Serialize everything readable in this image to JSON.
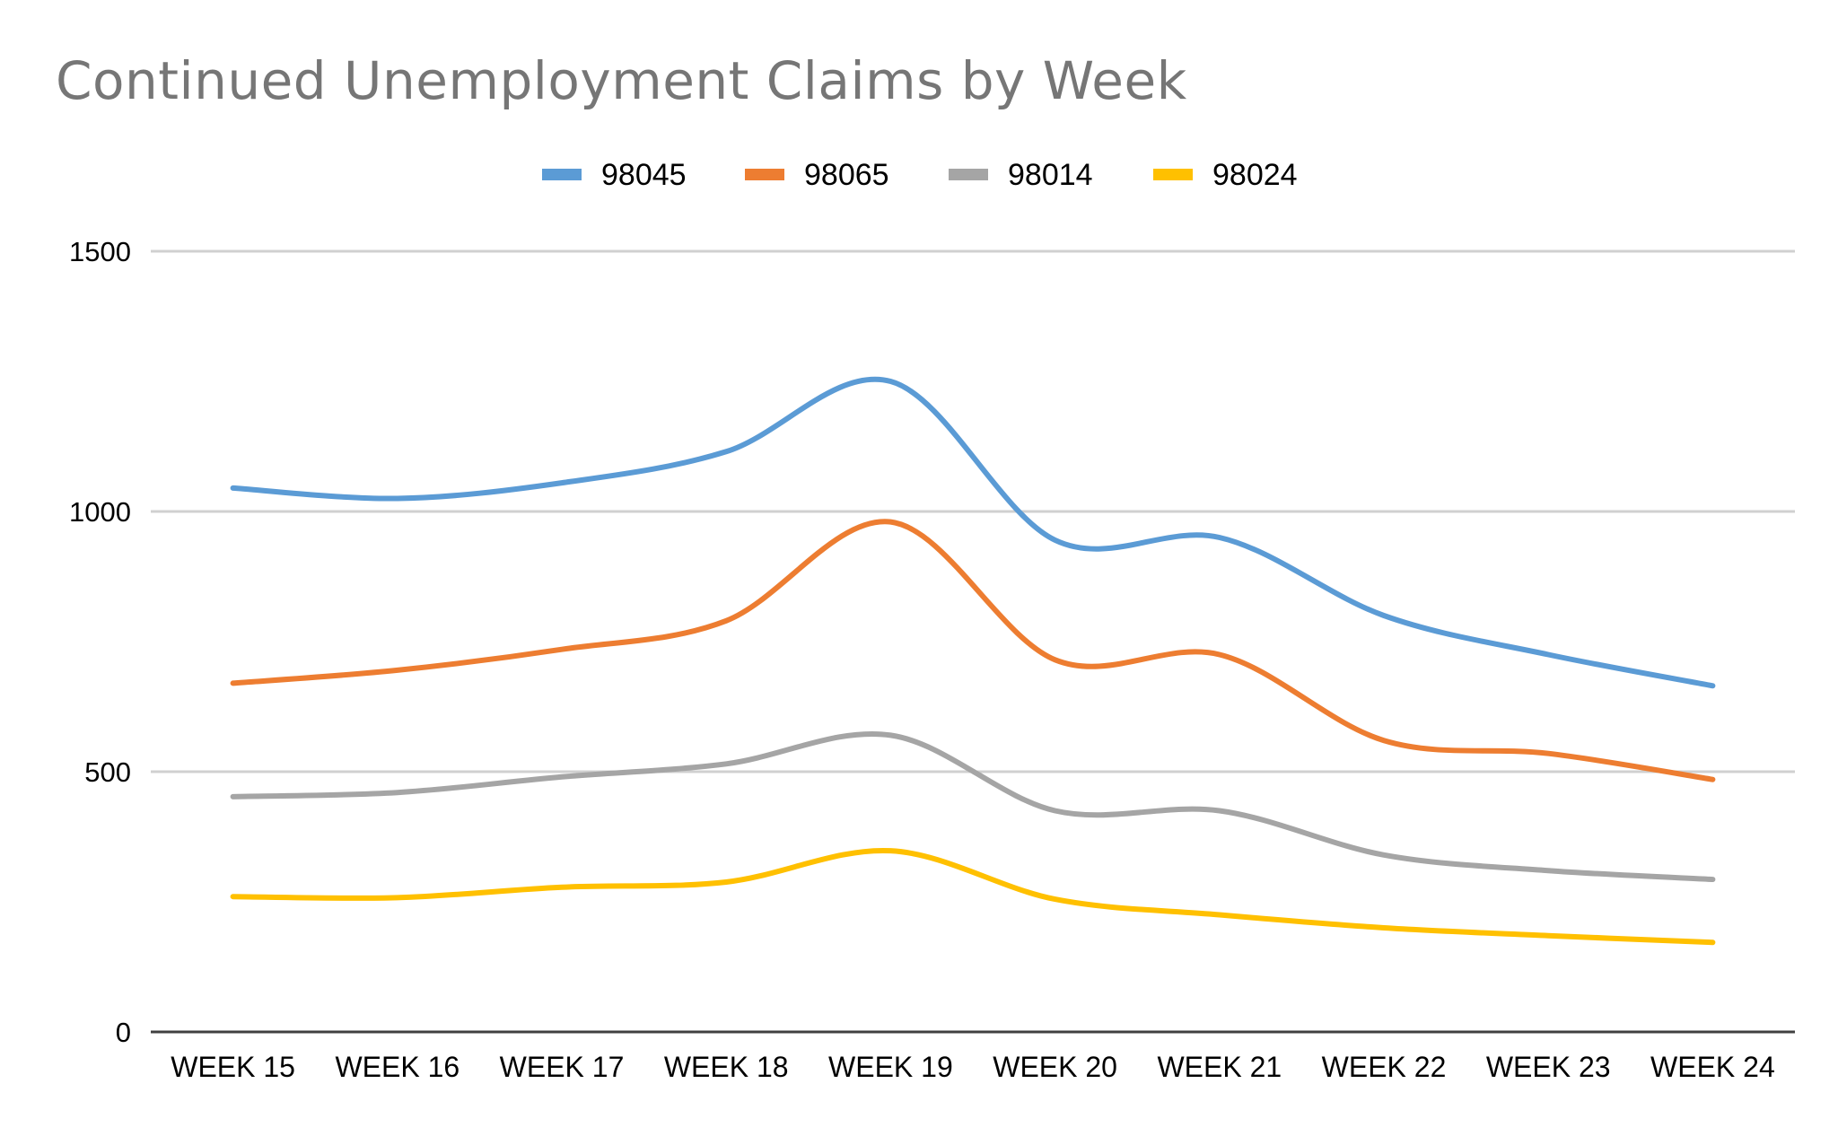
{
  "chart_data": {
    "type": "line",
    "title": "Continued Unemployment Claims by Week",
    "xlabel": "",
    "ylabel": "",
    "categories": [
      "WEEK 15",
      "WEEK 16",
      "WEEK 17",
      "WEEK 18",
      "WEEK 19",
      "WEEK 20",
      "WEEK 21",
      "WEEK 22",
      "WEEK 23",
      "WEEK 24"
    ],
    "ylim": [
      0,
      1500
    ],
    "yticks": [
      0,
      500,
      1000,
      1500
    ],
    "grid": true,
    "legend_position": "top",
    "smooth": true,
    "series": [
      {
        "name": "98045",
        "color": "#5b9bd5",
        "values": [
          1045,
          1025,
          1055,
          1115,
          1250,
          945,
          950,
          800,
          725,
          665
        ]
      },
      {
        "name": "98065",
        "color": "#ed7d31",
        "values": [
          670,
          695,
          735,
          790,
          980,
          715,
          725,
          560,
          535,
          485
        ]
      },
      {
        "name": "98014",
        "color": "#a5a5a5",
        "values": [
          452,
          460,
          490,
          515,
          570,
          425,
          425,
          340,
          310,
          293
        ]
      },
      {
        "name": "98024",
        "color": "#ffc000",
        "values": [
          260,
          258,
          278,
          288,
          348,
          255,
          225,
          200,
          185,
          172
        ]
      }
    ]
  }
}
